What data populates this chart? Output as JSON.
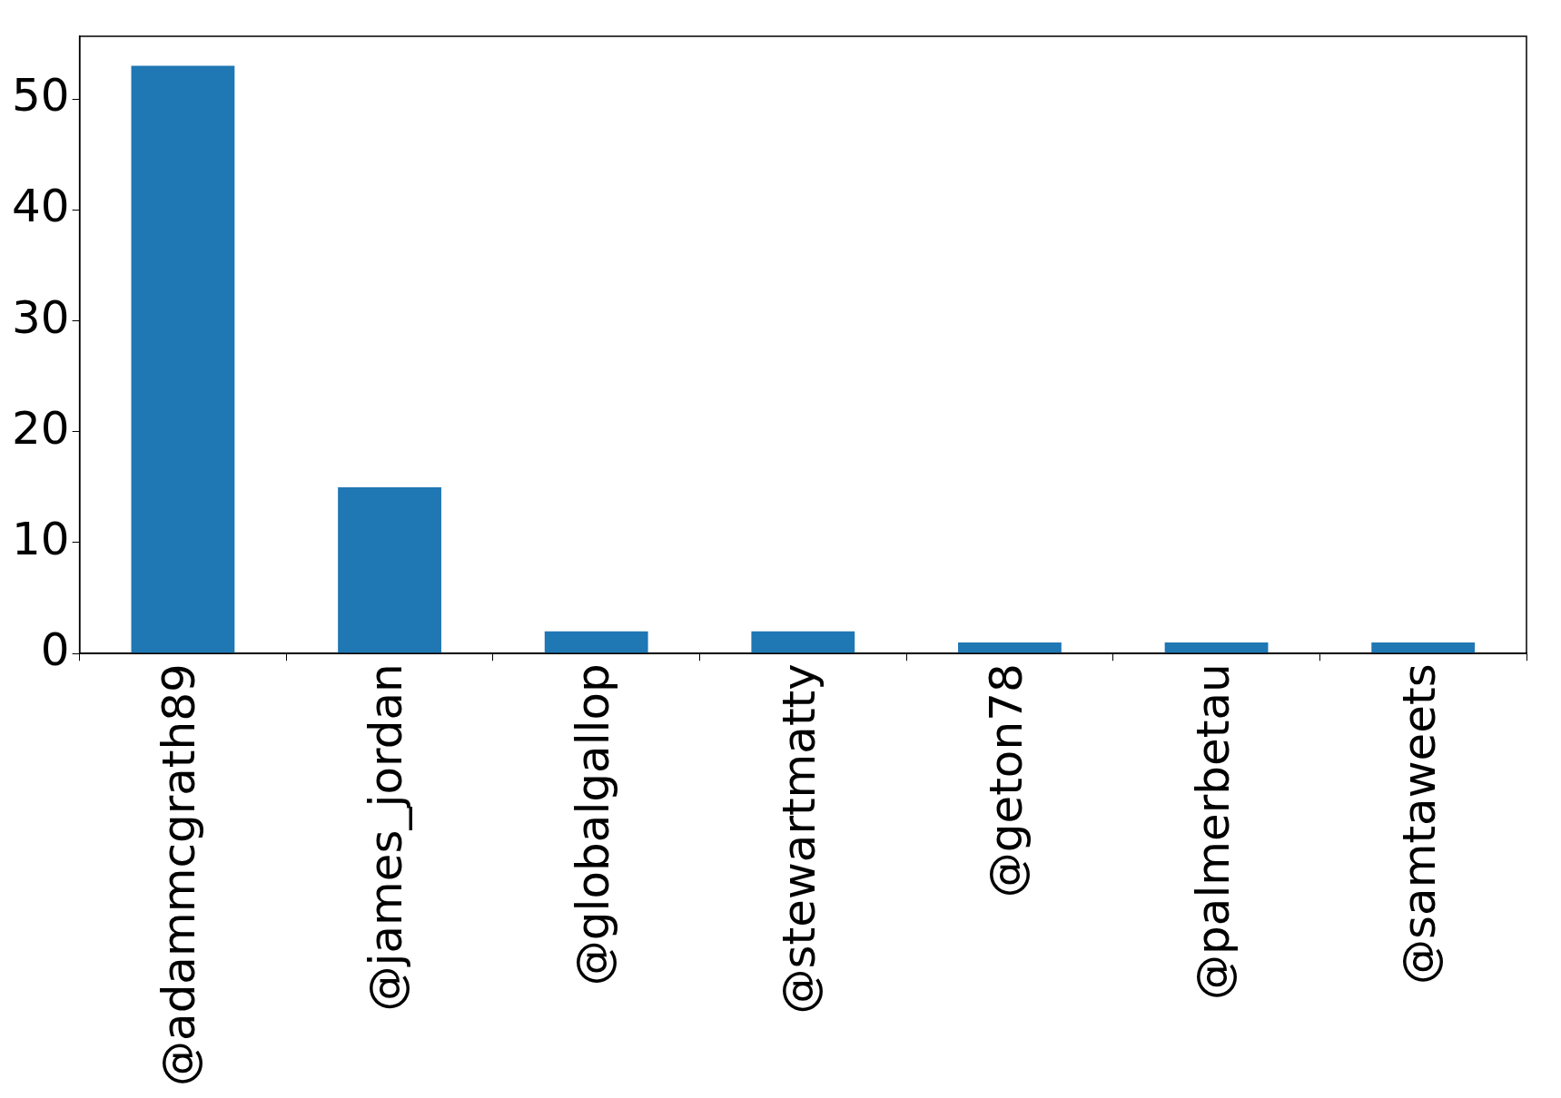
{
  "chart_data": {
    "type": "bar",
    "categories": [
      "@adammcgrath89",
      "@james_jordan",
      "@globalgallop",
      "@stewartmatty",
      "@geton78",
      "@palmerbetau",
      "@samtaweets"
    ],
    "values": [
      53,
      15,
      2,
      2,
      1,
      1,
      1
    ],
    "color": "#1f77b4",
    "ylim": [
      0,
      55.65
    ],
    "yticks": [
      0,
      10,
      20,
      30,
      40,
      50
    ],
    "grid": false,
    "legend": false
  }
}
